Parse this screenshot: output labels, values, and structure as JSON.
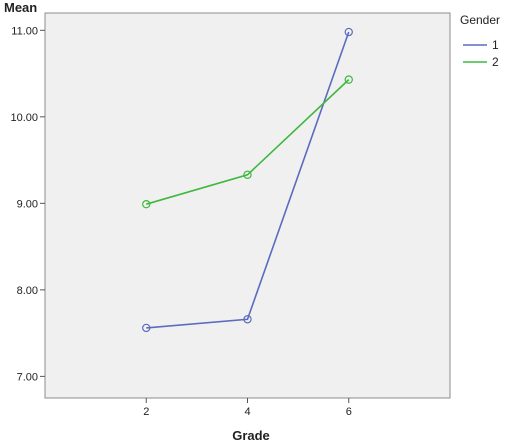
{
  "chart_data": {
    "type": "line",
    "xlabel": "Grade",
    "ylabel": "Mean",
    "x": [
      2,
      4,
      6
    ],
    "x_ticks": [
      "2",
      "4",
      "6"
    ],
    "y_ticks": [
      "7.00",
      "8.00",
      "9.00",
      "10.00",
      "11.00"
    ],
    "xlim": [
      0,
      8
    ],
    "ylim": [
      6.75,
      11.2
    ],
    "grid": false,
    "legend": {
      "title": "Gender",
      "placement": "right"
    },
    "series": [
      {
        "name": "1",
        "color": "#5b6bbf",
        "values": [
          7.56,
          7.66,
          10.98
        ]
      },
      {
        "name": "2",
        "color": "#3db83d",
        "values": [
          8.99,
          9.33,
          10.43
        ]
      }
    ]
  }
}
